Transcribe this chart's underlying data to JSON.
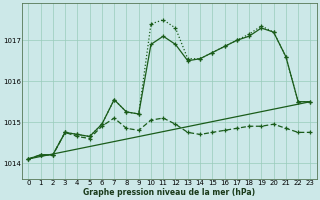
{
  "xlabel": "Graphe pression niveau de la mer (hPa)",
  "bg_color": "#cce8e8",
  "grid_color": "#99ccbb",
  "line_color": "#1a5c1a",
  "xlim": [
    -0.5,
    23.5
  ],
  "ylim": [
    1013.6,
    1017.9
  ],
  "yticks": [
    1014,
    1015,
    1016,
    1017
  ],
  "xticks": [
    0,
    1,
    2,
    3,
    4,
    5,
    6,
    7,
    8,
    9,
    10,
    11,
    12,
    13,
    14,
    15,
    16,
    17,
    18,
    19,
    20,
    21,
    22,
    23
  ],
  "line1_x": [
    0,
    1,
    2,
    3,
    4,
    5,
    6,
    7,
    8,
    9,
    10,
    11,
    12,
    13,
    14,
    15,
    16,
    17,
    18,
    19,
    20,
    21,
    22,
    23
  ],
  "line1_y": [
    1014.1,
    1014.2,
    1014.2,
    1014.75,
    1014.7,
    1014.65,
    1014.95,
    1015.55,
    1015.25,
    1015.2,
    1017.4,
    1017.5,
    1017.3,
    1016.55,
    1016.55,
    1016.7,
    1016.85,
    1017.0,
    1017.15,
    1017.35,
    1017.2,
    1016.6,
    1015.5,
    1015.5
  ],
  "line2_x": [
    0,
    1,
    2,
    3,
    4,
    5,
    6,
    7,
    8,
    9,
    10,
    11,
    12,
    13,
    14,
    15,
    16,
    17,
    18,
    19,
    20,
    21,
    22,
    23
  ],
  "line2_y": [
    1014.1,
    1014.2,
    1014.2,
    1014.75,
    1014.7,
    1014.65,
    1014.95,
    1015.55,
    1015.25,
    1015.2,
    1016.9,
    1017.1,
    1016.9,
    1016.5,
    1016.55,
    1016.7,
    1016.85,
    1017.0,
    1017.1,
    1017.3,
    1017.2,
    1016.6,
    1015.5,
    1015.5
  ],
  "line3_x": [
    0,
    23
  ],
  "line3_y": [
    1014.1,
    1015.5
  ],
  "line4_x": [
    0,
    1,
    2,
    3,
    4,
    5,
    6,
    7,
    8,
    9,
    10,
    11,
    12,
    13,
    14,
    15,
    16,
    17,
    18,
    19,
    20,
    21,
    22,
    23
  ],
  "line4_y": [
    1014.1,
    1014.2,
    1014.2,
    1014.75,
    1014.65,
    1014.6,
    1014.9,
    1015.1,
    1014.85,
    1014.8,
    1015.05,
    1015.1,
    1014.95,
    1014.75,
    1014.7,
    1014.75,
    1014.8,
    1014.85,
    1014.9,
    1014.9,
    1014.95,
    1014.85,
    1014.75,
    1014.75
  ]
}
